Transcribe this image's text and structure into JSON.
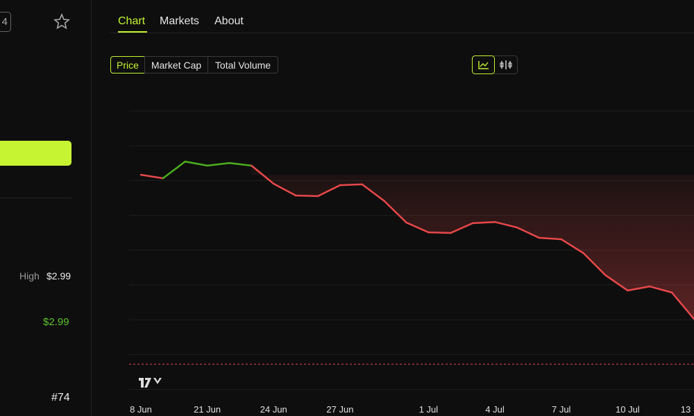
{
  "sidebar": {
    "badge": "4",
    "high_label": "High",
    "high_value": "$2.99",
    "price": "$2.99",
    "rank": "#74"
  },
  "tabs": [
    "Chart",
    "Markets",
    "About"
  ],
  "metric_buttons": [
    "Price",
    "Market Cap",
    "Total Volume"
  ],
  "chart_data": {
    "type": "line",
    "x": [
      "8 Jun",
      null,
      null,
      "21 Jun",
      null,
      null,
      "24 Jun",
      null,
      null,
      "27 Jun",
      null,
      null,
      null,
      "1 Jul",
      null,
      null,
      "4 Jul",
      null,
      null,
      "7 Jul",
      null,
      null,
      "10 Jul",
      null,
      null,
      "13"
    ],
    "values": [
      77.8,
      76.6,
      82.4,
      81.0,
      81.9,
      81.0,
      74.7,
      70.6,
      70.4,
      74.2,
      74.5,
      68.7,
      61.2,
      57.8,
      57.6,
      61.0,
      61.4,
      59.5,
      55.9,
      55.4,
      50.6,
      42.9,
      37.6,
      39.0,
      36.9,
      27.7
    ],
    "ylim": [
      0,
      100
    ],
    "color_up": "#4caf1f",
    "color_down": "#e8484a",
    "dashed_line": 12.0,
    "dashed_color": "#e8484a"
  }
}
